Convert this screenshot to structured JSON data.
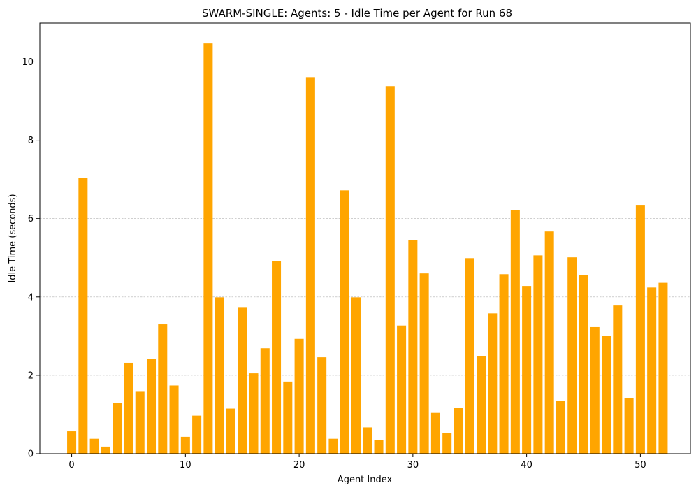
{
  "chart_data": {
    "type": "bar",
    "title": "SWARM-SINGLE: Agents: 5 - Idle Time per Agent for Run 68",
    "xlabel": "Agent Index",
    "ylabel": "Idle Time (seconds)",
    "x": [
      0,
      1,
      2,
      3,
      4,
      5,
      6,
      7,
      8,
      9,
      10,
      11,
      12,
      13,
      14,
      15,
      16,
      17,
      18,
      19,
      20,
      21,
      22,
      23,
      24,
      25,
      26,
      27,
      28,
      29,
      30,
      31,
      32,
      33,
      34,
      35,
      36,
      37,
      38,
      39,
      40,
      41,
      42,
      43,
      44,
      45,
      46,
      47,
      48,
      49,
      50,
      51,
      52
    ],
    "values": [
      0.57,
      7.04,
      0.38,
      0.18,
      1.29,
      2.32,
      1.58,
      2.41,
      3.3,
      1.74,
      0.43,
      0.97,
      10.47,
      3.99,
      1.15,
      3.74,
      2.05,
      2.69,
      4.92,
      1.84,
      2.93,
      9.61,
      2.46,
      0.38,
      6.72,
      3.99,
      0.67,
      0.35,
      9.38,
      3.27,
      5.45,
      4.6,
      1.04,
      0.52,
      1.16,
      4.99,
      2.48,
      3.58,
      4.58,
      6.22,
      4.28,
      5.06,
      5.67,
      1.35,
      5.01,
      4.55,
      3.23,
      3.01,
      3.78,
      1.41,
      6.35,
      4.24,
      4.36
    ],
    "xticks": [
      0,
      10,
      20,
      30,
      40,
      50
    ],
    "yticks": [
      0,
      2,
      4,
      6,
      8,
      10
    ],
    "xlim": [
      -2.8,
      54.4
    ],
    "ylim": [
      0,
      10.99
    ],
    "grid": "y-dashed",
    "bar_color": "#ffa500"
  }
}
